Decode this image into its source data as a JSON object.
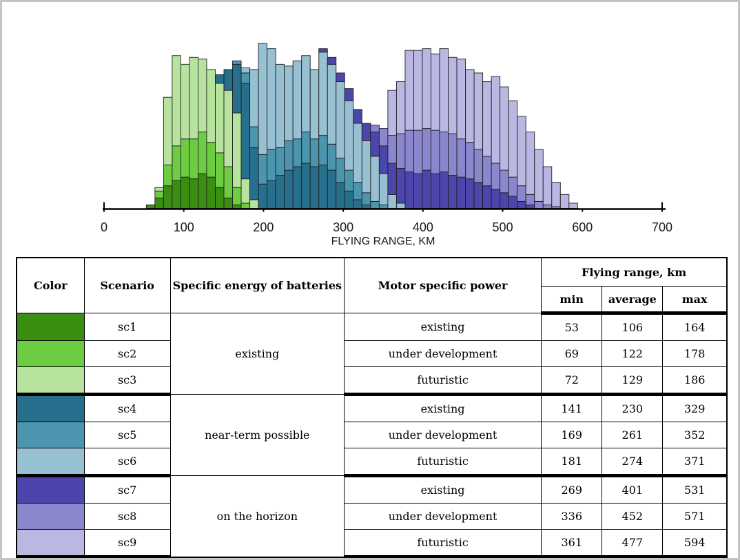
{
  "chart_data": {
    "type": "stacked-histogram",
    "xlabel": "FLYING RANGE, KM",
    "x_axis": {
      "min_km": 0,
      "max_km": 700,
      "ticks": [
        0,
        100,
        200,
        300,
        400,
        500,
        600,
        700
      ]
    },
    "grid": false,
    "legend": "table-below",
    "bin_start_km": 53,
    "bin_width_km": 10.82,
    "height_units": "relative count, 100 = full plot height",
    "series": [
      {
        "name": "sc1",
        "color": "#3a8e11",
        "start_bin": 0,
        "values": [
          2,
          6,
          13,
          16,
          18,
          17,
          20,
          18,
          12,
          6,
          2
        ]
      },
      {
        "name": "sc2",
        "color": "#6ecc43",
        "start_bin": 1,
        "values": [
          4,
          12,
          20,
          22,
          23,
          24,
          20,
          20,
          18,
          10,
          3
        ]
      },
      {
        "name": "sc3",
        "color": "#b8e39e",
        "start_bin": 1,
        "values": [
          2,
          39,
          52,
          43,
          47,
          42,
          42,
          40,
          44,
          43,
          14,
          5
        ]
      },
      {
        "name": "sc4",
        "color": "#26708e",
        "start_bin": 8,
        "values": [
          5,
          12,
          28,
          55,
          30,
          14,
          16,
          19,
          22,
          24,
          26,
          24,
          25,
          22,
          15,
          10,
          5,
          2
        ]
      },
      {
        "name": "sc5",
        "color": "#4b96ae",
        "start_bin": 10,
        "values": [
          2,
          6,
          12,
          17,
          18,
          16,
          17,
          16,
          18,
          16,
          17,
          15,
          14,
          12,
          10,
          7,
          4,
          2
        ]
      },
      {
        "name": "sc6",
        "color": "#97c0d3",
        "start_bin": 11,
        "values": [
          3,
          33,
          64,
          58,
          48,
          43,
          45,
          44,
          40,
          48,
          46,
          44,
          40,
          34,
          30,
          26,
          18,
          8,
          3
        ]
      },
      {
        "name": "sc7",
        "color": "#4c45ab",
        "start_bin": 20,
        "values": [
          2,
          4,
          5,
          7,
          8,
          10,
          14,
          16,
          18,
          20,
          21,
          20,
          22,
          20,
          21,
          19,
          18,
          17,
          15,
          13,
          11,
          9,
          7,
          4,
          2
        ]
      },
      {
        "name": "sc8",
        "color": "#8b87ce",
        "start_bin": 26,
        "values": [
          4,
          10,
          16,
          20,
          24,
          25,
          24,
          25,
          23,
          24,
          22,
          21,
          19,
          17,
          15,
          13,
          11,
          9,
          6,
          4,
          2,
          1
        ]
      },
      {
        "name": "sc9",
        "color": "#bab7e2",
        "start_bin": 28,
        "values": [
          26,
          30,
          46,
          46,
          46,
          44,
          48,
          44,
          46,
          42,
          44,
          43,
          50,
          48,
          44,
          40,
          36,
          30,
          22,
          14,
          8,
          3
        ]
      }
    ]
  },
  "table": {
    "headers": {
      "color": "Color",
      "scenario": "Scenario",
      "battery": "Specific energy of batteries",
      "motor": "Motor specific power",
      "flying_range": "Flying range, km",
      "min": "min",
      "average": "average",
      "max": "max"
    },
    "groups": [
      {
        "battery": "existing",
        "rows": [
          {
            "scenario": "sc1",
            "color": "#3a8e11",
            "motor": "existing",
            "min": 53,
            "average": 106,
            "max": 164
          },
          {
            "scenario": "sc2",
            "color": "#6ecc43",
            "motor": "under development",
            "min": 69,
            "average": 122,
            "max": 178
          },
          {
            "scenario": "sc3",
            "color": "#b8e39e",
            "motor": "futuristic",
            "min": 72,
            "average": 129,
            "max": 186
          }
        ]
      },
      {
        "battery": "near-term possible",
        "rows": [
          {
            "scenario": "sc4",
            "color": "#26708e",
            "motor": "existing",
            "min": 141,
            "average": 230,
            "max": 329
          },
          {
            "scenario": "sc5",
            "color": "#4b96ae",
            "motor": "under development",
            "min": 169,
            "average": 261,
            "max": 352
          },
          {
            "scenario": "sc6",
            "color": "#97c0d3",
            "motor": "futuristic",
            "min": 181,
            "average": 274,
            "max": 371
          }
        ]
      },
      {
        "battery": "on the horizon",
        "rows": [
          {
            "scenario": "sc7",
            "color": "#4c45ab",
            "motor": "existing",
            "min": 269,
            "average": 401,
            "max": 531
          },
          {
            "scenario": "sc8",
            "color": "#8b87ce",
            "motor": "under development",
            "min": 336,
            "average": 452,
            "max": 571
          },
          {
            "scenario": "sc9",
            "color": "#bab7e2",
            "motor": "futuristic",
            "min": 361,
            "average": 477,
            "max": 594
          }
        ]
      }
    ]
  }
}
